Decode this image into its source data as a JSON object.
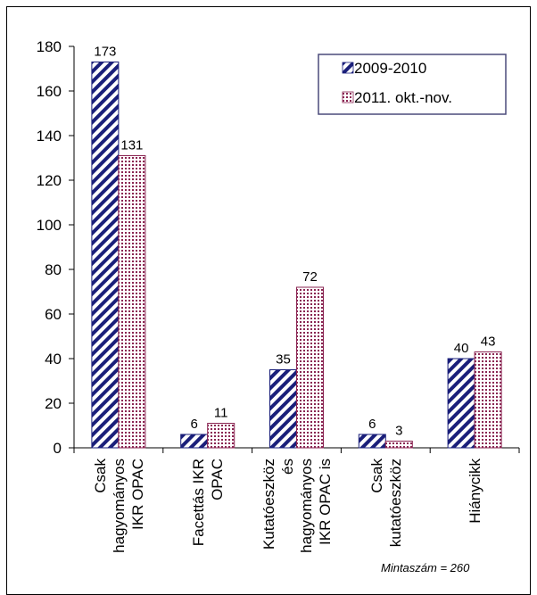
{
  "chart_data": {
    "type": "bar",
    "categories": [
      [
        "Csak",
        "hagyományos",
        "IKR OPAC"
      ],
      [
        "Facettás IKR",
        "OPAC"
      ],
      [
        "Kutatóeszköz",
        "és",
        "hagyományos",
        "IKR OPAC is"
      ],
      [
        "Csak",
        "kutatóeszköz"
      ],
      [
        "Hiánycikk"
      ]
    ],
    "series": [
      {
        "name": "2009-2010",
        "values": [
          173,
          6,
          35,
          6,
          40
        ],
        "pattern": "diagonal-stripes",
        "color": "#1a1f7a"
      },
      {
        "name": "2011. okt.-nov.",
        "values": [
          131,
          11,
          72,
          3,
          43
        ],
        "pattern": "dots",
        "color": "#8a2552"
      }
    ],
    "ylim": [
      0,
      180
    ],
    "yticks": [
      "0",
      "20",
      "40",
      "60",
      "80",
      "100",
      "120",
      "140",
      "160",
      "180"
    ],
    "grid": false,
    "legend_position": "top-right",
    "annotation": "Mintaszám = 260"
  }
}
